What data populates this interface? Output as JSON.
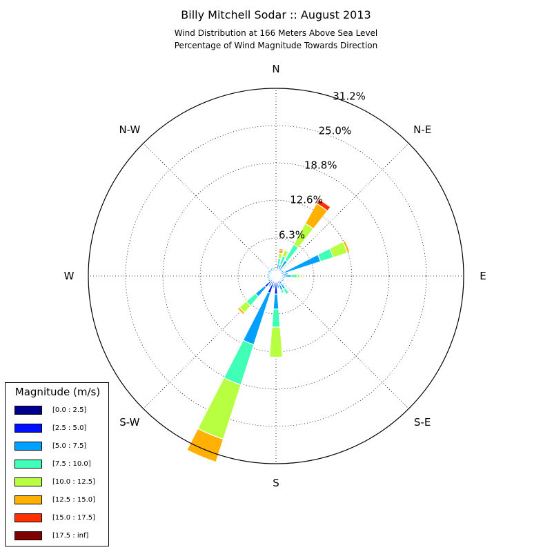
{
  "title": "Billy Mitchell Sodar :: August 2013",
  "subtitle_lines": [
    "Wind Distribution at 166 Meters Above Sea Level",
    "Percentage of Wind Magnitude Towards Direction"
  ],
  "chart_data": {
    "type": "windrose",
    "title": "Billy Mitchell Sodar :: August 2013",
    "subtitle": "Wind Distribution at 166 Meters Above Sea Level / Percentage of Wind Magnitude Towards Direction",
    "radial_ticks": [
      "6.3%",
      "12.6%",
      "18.8%",
      "25.0%",
      "31.2%"
    ],
    "radial_tick_values": [
      6.3,
      12.6,
      18.8,
      25.0,
      31.2
    ],
    "r_max": 31.2,
    "direction_labels": [
      {
        "label": "N",
        "angle": 0
      },
      {
        "label": "N-E",
        "angle": 45
      },
      {
        "label": "E",
        "angle": 90
      },
      {
        "label": "S-E",
        "angle": 135
      },
      {
        "label": "S",
        "angle": 180
      },
      {
        "label": "S-W",
        "angle": 225
      },
      {
        "label": "W",
        "angle": 270
      },
      {
        "label": "N-W",
        "angle": 315
      }
    ],
    "legend_title": "Magnitude (m/s)",
    "bins": [
      {
        "label": "[0.0 : 2.5]",
        "color": "#00008f"
      },
      {
        "label": "[2.5 : 5.0]",
        "color": "#0010ff"
      },
      {
        "label": "[5.0 : 7.5]",
        "color": "#00a0ff"
      },
      {
        "label": "[7.5 : 10.0]",
        "color": "#40ffb7"
      },
      {
        "label": "[10.0 : 12.5]",
        "color": "#b7ff40"
      },
      {
        "label": "[12.5 : 15.0]",
        "color": "#ffb000"
      },
      {
        "label": "[15.0 : 17.5]",
        "color": "#ff3000"
      },
      {
        "label": "[17.5 : inf]",
        "color": "#800000"
      }
    ],
    "sector_width_deg": 11.25,
    "sectors": [
      {
        "direction": 0,
        "cumulative": [
          0.3,
          0.5
        ]
      },
      {
        "direction": 11.25,
        "cumulative": [
          0.4,
          1.0,
          2.0,
          3.0,
          3.8,
          4.4,
          4.6
        ]
      },
      {
        "direction": 22.5,
        "cumulative": [
          0.5,
          1.0,
          2.0,
          3.5,
          4.5
        ]
      },
      {
        "direction": 33.75,
        "cumulative": [
          0.5,
          1.2,
          3.0,
          6.0,
          10.0,
          13.8,
          14.6
        ]
      },
      {
        "direction": 45,
        "cumulative": [
          0.5,
          1.0,
          1.5
        ]
      },
      {
        "direction": 56.25,
        "cumulative": [
          0.5,
          1.0,
          1.5
        ]
      },
      {
        "direction": 67.5,
        "cumulative": [
          0.5,
          1.5,
          7.8,
          10.0,
          12.5,
          12.9
        ]
      },
      {
        "direction": 78.75,
        "cumulative": [
          0.5,
          1.0,
          2.0
        ]
      },
      {
        "direction": 90,
        "cumulative": [
          0.5,
          1.0,
          2.5,
          3.5,
          4.0
        ]
      },
      {
        "direction": 101.25,
        "cumulative": [
          0.5,
          1.0,
          1.5
        ]
      },
      {
        "direction": 112.5,
        "cumulative": [
          0.5,
          1.0,
          1.5
        ]
      },
      {
        "direction": 123.75,
        "cumulative": [
          0.5,
          1.0,
          1.5
        ]
      },
      {
        "direction": 135,
        "cumulative": [
          0.5,
          1.0,
          1.5
        ]
      },
      {
        "direction": 146.25,
        "cumulative": [
          0.5,
          1.5,
          2.5,
          3.5
        ]
      },
      {
        "direction": 157.5,
        "cumulative": [
          0.5,
          1.5,
          2.5,
          3.0
        ]
      },
      {
        "direction": 168.75,
        "cumulative": [
          0.5,
          1.0,
          2.0
        ]
      },
      {
        "direction": 180,
        "cumulative": [
          0.5,
          3.0,
          5.5,
          8.5,
          13.5
        ]
      },
      {
        "direction": 191.25,
        "cumulative": [
          0.5,
          1.0,
          2.0
        ]
      },
      {
        "direction": 202.5,
        "cumulative": [
          0.5,
          3.0,
          12.0,
          19.0,
          28.5,
          32.5
        ]
      },
      {
        "direction": 213.75,
        "cumulative": [
          0.5,
          1.0,
          2.0
        ]
      },
      {
        "direction": 225,
        "cumulative": [
          0.5,
          2.5,
          4.5,
          6.5,
          8.0,
          8.4
        ]
      },
      {
        "direction": 236.25,
        "cumulative": [
          0.5,
          1.0,
          1.5
        ]
      },
      {
        "direction": 247.5,
        "cumulative": [
          0.5,
          1.0,
          1.5
        ]
      },
      {
        "direction": 258.75,
        "cumulative": [
          0.5,
          1.0,
          1.5
        ]
      },
      {
        "direction": 270,
        "cumulative": [
          0.5,
          1.0,
          1.5
        ]
      },
      {
        "direction": 281.25,
        "cumulative": [
          0.5,
          1.0,
          1.5
        ]
      },
      {
        "direction": 292.5,
        "cumulative": [
          0.5,
          1.0,
          1.5
        ]
      },
      {
        "direction": 303.75,
        "cumulative": [
          0.5,
          1.0,
          1.5
        ]
      },
      {
        "direction": 315,
        "cumulative": [
          0.5,
          1.0,
          1.5
        ]
      },
      {
        "direction": 326.25,
        "cumulative": [
          0.5,
          1.0,
          1.5
        ]
      },
      {
        "direction": 337.5,
        "cumulative": [
          0.5,
          1.0,
          1.5
        ]
      },
      {
        "direction": 348.75,
        "cumulative": [
          0.5,
          1.0,
          1.5
        ]
      }
    ]
  }
}
